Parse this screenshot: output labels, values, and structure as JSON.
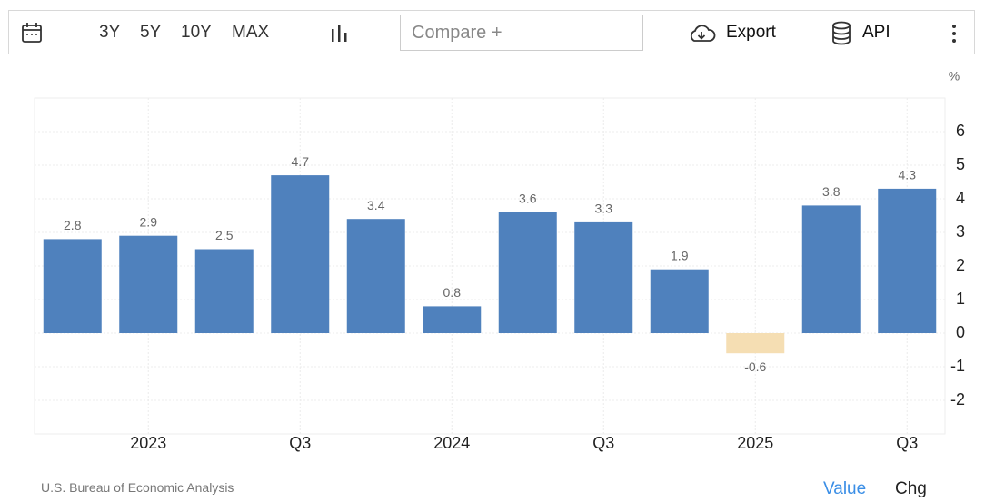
{
  "toolbar": {
    "ranges": [
      "3Y",
      "5Y",
      "10Y",
      "MAX"
    ],
    "compare_placeholder": "Compare +",
    "export": "Export",
    "api": "API"
  },
  "chart_data": {
    "type": "bar",
    "unit": "%",
    "categories": [
      null,
      "2023",
      null,
      "Q3",
      null,
      "2024",
      null,
      "Q3",
      null,
      "2025",
      null,
      "Q3"
    ],
    "values": [
      2.8,
      2.9,
      2.5,
      4.7,
      3.4,
      0.8,
      3.6,
      3.3,
      1.9,
      -0.6,
      3.8,
      4.3
    ],
    "color": "#4f81bd",
    "negative_color": "#f5deb3",
    "ylim": [
      -3,
      7
    ],
    "yticks": [
      -2,
      -1,
      0,
      1,
      2,
      3,
      4,
      5,
      6
    ],
    "grid": true
  },
  "footer": {
    "source": "U.S. Bureau of Economic Analysis",
    "tabs": [
      "Value",
      "Chg"
    ]
  }
}
